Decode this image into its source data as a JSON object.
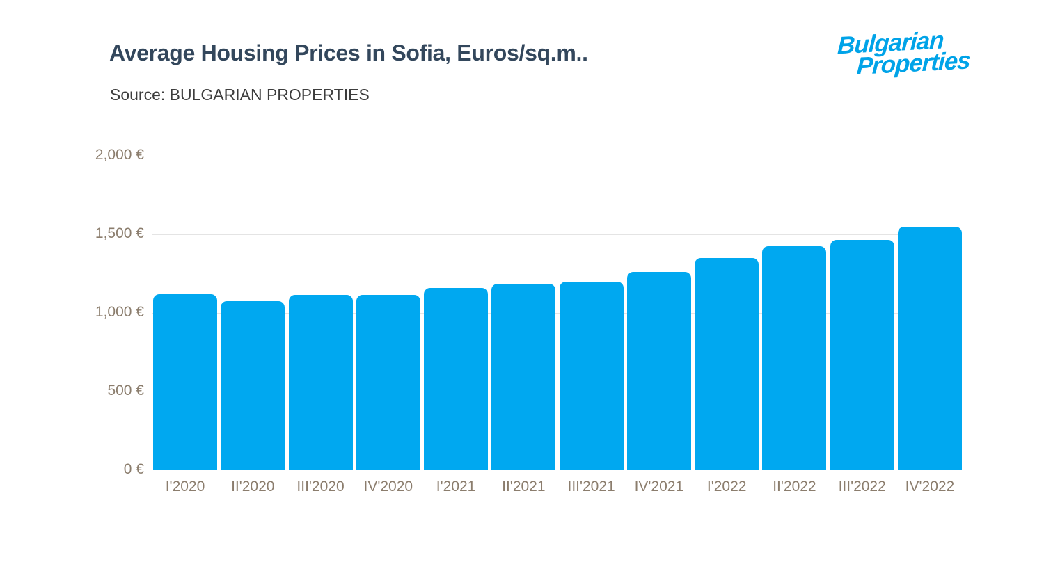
{
  "header": {
    "title": "Average Housing Prices in Sofia, Euros/sq.m..",
    "source": "Source: BULGARIAN PROPERTIES",
    "logo": {
      "line1": "Bulgarian",
      "line2": "Properties",
      "color": "#00a3e8"
    }
  },
  "chart_data": {
    "type": "bar",
    "title": "Average Housing Prices in Sofia, Euros/sq.m..",
    "subtitle": "Source: BULGARIAN PROPERTIES",
    "categories": [
      "I'2020",
      "II'2020",
      "III'2020",
      "IV'2020",
      "I'2021",
      "II'2021",
      "III'2021",
      "IV'2021",
      "I'2022",
      "II'2022",
      "III'2022",
      "IV'2022"
    ],
    "values": [
      1118,
      1076,
      1113,
      1117,
      1160,
      1184,
      1199,
      1260,
      1349,
      1426,
      1466,
      1548
    ],
    "unit": "Euros/sq.m",
    "xlabel": "",
    "ylabel": "",
    "ylim": [
      0,
      2000
    ],
    "yticks": [
      0,
      500,
      1000,
      1500,
      2000
    ],
    "ytick_labels": [
      "0 €",
      "500 €",
      "1,000 €",
      "1,500 €",
      "2,000 €"
    ],
    "grid": true,
    "legend": false,
    "bar_color": "#00a8f0",
    "tick_color": "#8b7d6d",
    "gridline_color": "#e4e4e4",
    "title_color": "#33475c"
  }
}
